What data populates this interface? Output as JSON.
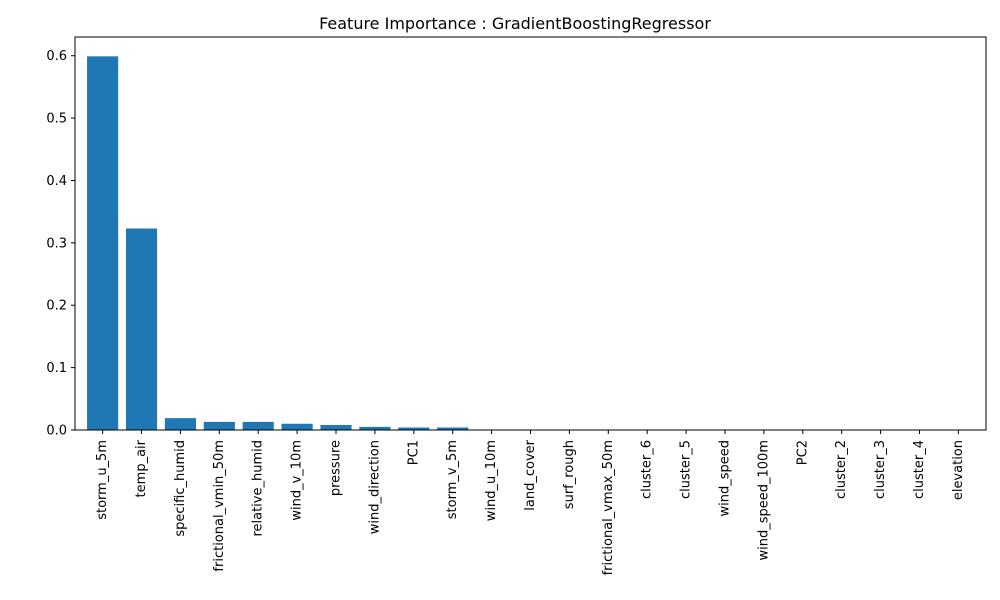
{
  "chart_data": {
    "type": "bar",
    "title": "Feature Importance : GradientBoostingRegressor",
    "xlabel": "",
    "ylabel": "",
    "categories": [
      "storm_u_5m",
      "temp_air",
      "specific_humid",
      "frictional_vmin_50m",
      "relative_humid",
      "wind_v_10m",
      "pressure",
      "wind_direction",
      "PC1",
      "storm_v_5m",
      "wind_u_10m",
      "land_cover",
      "surf_rough",
      "frictional_vmax_50m",
      "cluster_6",
      "cluster_5",
      "wind_speed",
      "wind_speed_100m",
      "PC2",
      "cluster_2",
      "cluster_3",
      "cluster_4",
      "elevation"
    ],
    "values": [
      0.599,
      0.323,
      0.019,
      0.013,
      0.013,
      0.01,
      0.008,
      0.005,
      0.004,
      0.004,
      0.0005,
      0.0004,
      0.0003,
      0.0002,
      0.0001,
      0.0001,
      0.0001,
      0.0001,
      0.0001,
      5e-05,
      5e-05,
      5e-05,
      3e-05
    ],
    "ylim": [
      0,
      0.63
    ],
    "yticks": [
      "0.0",
      "0.1",
      "0.2",
      "0.3",
      "0.4",
      "0.5",
      "0.6"
    ],
    "grid": false,
    "legend": "none",
    "bar_color": "#1f77b4"
  }
}
